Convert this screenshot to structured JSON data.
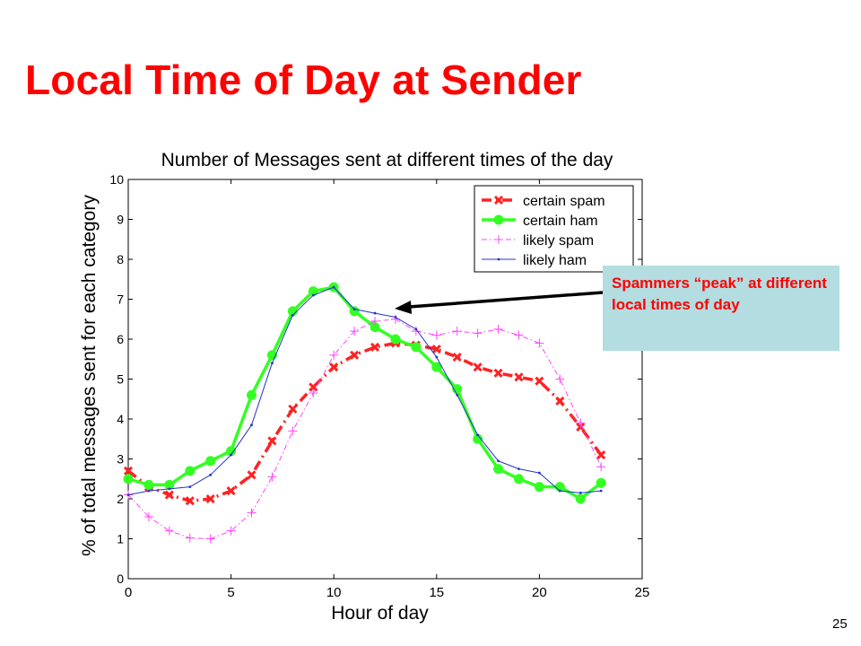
{
  "slide": {
    "title": "Local Time of Day at Sender",
    "callout": "Spammers “peak” at different local times of day",
    "page_number": "25"
  },
  "colors": {
    "title": "#ff0000",
    "callout_bg": "#b3dde1",
    "callout_text": "#ff0000",
    "certain_spam": "#ff2222",
    "certain_ham": "#33ff22",
    "likely_spam": "#ff44ff",
    "likely_ham": "#2233cc"
  },
  "chart_data": {
    "type": "line",
    "title": "Number of Messages sent at different times of the day",
    "xlabel": "Hour of day",
    "ylabel": "% of total messages sent for each category",
    "xlim": [
      0,
      25
    ],
    "ylim": [
      0,
      10
    ],
    "xticks": [
      0,
      5,
      10,
      15,
      20,
      25
    ],
    "yticks": [
      0,
      1,
      2,
      3,
      4,
      5,
      6,
      7,
      8,
      9,
      10
    ],
    "grid": false,
    "legend_position": "top-right",
    "x": [
      0,
      1,
      2,
      3,
      4,
      5,
      6,
      7,
      8,
      9,
      10,
      11,
      12,
      13,
      14,
      15,
      16,
      17,
      18,
      19,
      20,
      21,
      22,
      23
    ],
    "series": [
      {
        "name": "certain spam",
        "style": "dash-dot",
        "marker": "x",
        "values": [
          2.7,
          2.3,
          2.1,
          1.95,
          2.0,
          2.2,
          2.6,
          3.45,
          4.25,
          4.8,
          5.3,
          5.6,
          5.8,
          5.9,
          5.85,
          5.75,
          5.55,
          5.3,
          5.15,
          5.05,
          4.95,
          4.45,
          3.8,
          3.1
        ]
      },
      {
        "name": "certain ham",
        "style": "solid-thick",
        "marker": "dot",
        "values": [
          2.5,
          2.35,
          2.35,
          2.7,
          2.95,
          3.2,
          4.6,
          5.6,
          6.7,
          7.2,
          7.3,
          6.7,
          6.3,
          6.0,
          5.8,
          5.3,
          4.75,
          3.5,
          2.75,
          2.5,
          2.3,
          2.3,
          2.0,
          2.4
        ]
      },
      {
        "name": "likely spam",
        "style": "dash-dot",
        "marker": "plus",
        "values": [
          2.1,
          1.55,
          1.2,
          1.02,
          1.0,
          1.2,
          1.65,
          2.55,
          3.7,
          4.65,
          5.6,
          6.2,
          6.45,
          6.5,
          6.2,
          6.1,
          6.2,
          6.15,
          6.25,
          6.1,
          5.9,
          5.0,
          3.9,
          2.8
        ]
      },
      {
        "name": "likely ham",
        "style": "solid",
        "marker": "small-dot",
        "values": [
          2.1,
          2.2,
          2.25,
          2.3,
          2.6,
          3.1,
          3.85,
          5.4,
          6.6,
          7.1,
          7.3,
          6.75,
          6.65,
          6.55,
          6.25,
          5.55,
          4.6,
          3.6,
          2.95,
          2.75,
          2.65,
          2.2,
          2.15,
          2.2
        ]
      }
    ]
  }
}
